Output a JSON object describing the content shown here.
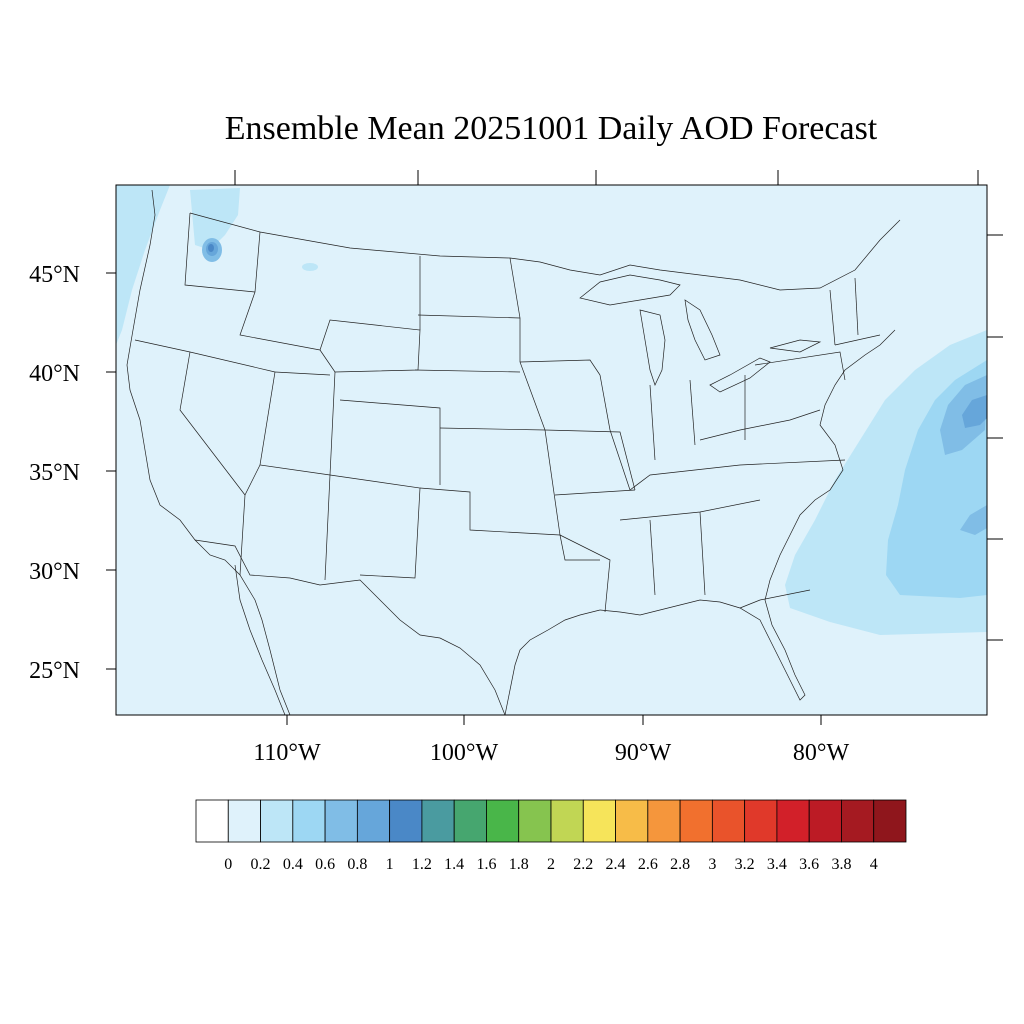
{
  "title": "Ensemble Mean 20251001 Daily AOD Forecast",
  "map": {
    "variable": "AOD",
    "region": "CONUS",
    "lat_range": [
      22.8,
      49.5
    ],
    "lon_range": [
      -119.6,
      -70.6
    ],
    "lat_ticks": [
      "45°N",
      "40°N",
      "35°N",
      "30°N",
      "25°N"
    ],
    "lon_ticks": [
      "110°W",
      "100°W",
      "90°W",
      "80°W"
    ],
    "background_color": "#dff2fb",
    "features": [
      {
        "name": "smoke-plume-pacific-northwest",
        "peak_aod": 1.2
      },
      {
        "name": "aerosol-plume-atlantic-offshore",
        "peak_aod": 0.8
      }
    ]
  },
  "colorbar": {
    "labels": [
      "0",
      "0.2",
      "0.4",
      "0.6",
      "0.8",
      "1",
      "1.2",
      "1.4",
      "1.6",
      "1.8",
      "2",
      "2.2",
      "2.4",
      "2.6",
      "2.8",
      "3",
      "3.2",
      "3.4",
      "3.6",
      "3.8",
      "4"
    ],
    "colors": [
      "#ffffff",
      "#dff2fb",
      "#bde6f7",
      "#9dd7f3",
      "#80bde6",
      "#66a6da",
      "#4a88c7",
      "#4a9ba0",
      "#46a66f",
      "#49b649",
      "#86c44f",
      "#c1d654",
      "#f6e45a",
      "#f7bc48",
      "#f5963c",
      "#f1702e",
      "#e9532b",
      "#e0392a",
      "#d22029",
      "#bc1b25",
      "#a51a21",
      "#8f161c"
    ]
  }
}
